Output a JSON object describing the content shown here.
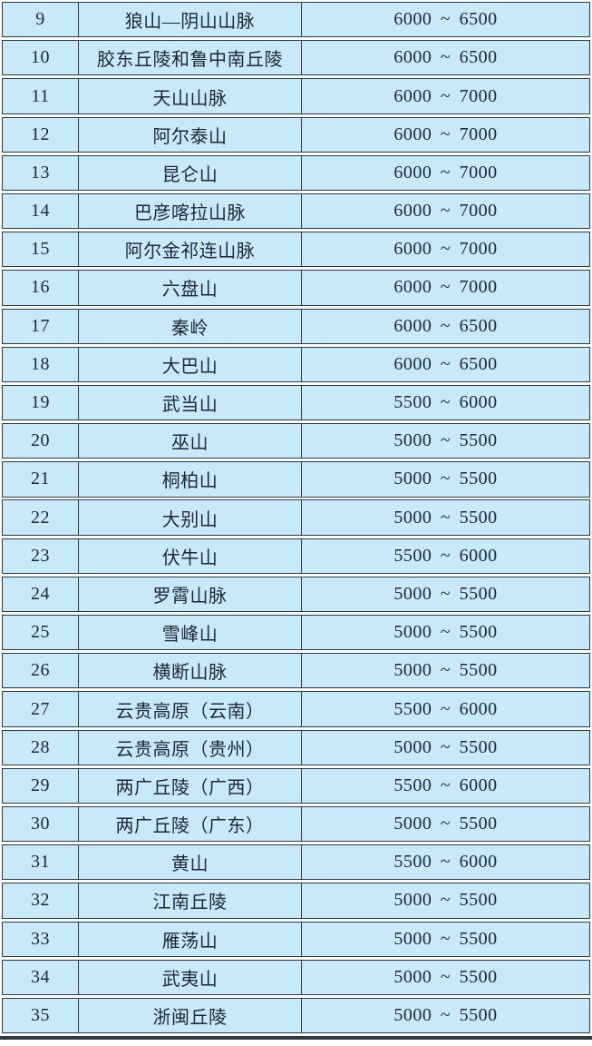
{
  "table": {
    "description_rows": [
      {
        "no": "9",
        "name": "狼山—阴山山脉",
        "range": "6000 ~ 6500"
      },
      {
        "no": "10",
        "name": "胶东丘陵和鲁中南丘陵",
        "range": "6000 ~ 6500"
      },
      {
        "no": "11",
        "name": "天山山脉",
        "range": "6000 ~ 7000"
      },
      {
        "no": "12",
        "name": "阿尔泰山",
        "range": "6000 ~ 7000"
      },
      {
        "no": "13",
        "name": "昆仑山",
        "range": "6000 ~ 7000"
      },
      {
        "no": "14",
        "name": "巴彦喀拉山脉",
        "range": "6000 ~ 7000"
      },
      {
        "no": "15",
        "name": "阿尔金祁连山脉",
        "range": "6000 ~ 7000"
      },
      {
        "no": "16",
        "name": "六盘山",
        "range": "6000 ~ 7000"
      },
      {
        "no": "17",
        "name": "秦岭",
        "range": "6000 ~ 6500"
      },
      {
        "no": "18",
        "name": "大巴山",
        "range": "6000 ~ 6500"
      },
      {
        "no": "19",
        "name": "武当山",
        "range": "5500 ~ 6000"
      },
      {
        "no": "20",
        "name": "巫山",
        "range": "5000 ~ 5500"
      },
      {
        "no": "21",
        "name": "桐柏山",
        "range": "5000 ~ 5500"
      },
      {
        "no": "22",
        "name": "大别山",
        "range": "5000 ~ 5500"
      },
      {
        "no": "23",
        "name": "伏牛山",
        "range": "5500 ~ 6000"
      },
      {
        "no": "24",
        "name": "罗霄山脉",
        "range": "5000 ~ 5500"
      },
      {
        "no": "25",
        "name": "雪峰山",
        "range": "5000 ~ 5500"
      },
      {
        "no": "26",
        "name": "横断山脉",
        "range": "5000 ~ 5500"
      },
      {
        "no": "27",
        "name": "云贵高原（云南）",
        "range": "5500 ~ 6000"
      },
      {
        "no": "28",
        "name": "云贵高原（贵州）",
        "range": "5000 ~ 5500"
      },
      {
        "no": "29",
        "name": "两广丘陵（广西）",
        "range": "5500 ~ 6000"
      },
      {
        "no": "30",
        "name": "两广丘陵（广东）",
        "range": "5000 ~ 5500"
      },
      {
        "no": "31",
        "name": "黄山",
        "range": "5500 ~ 6000"
      },
      {
        "no": "32",
        "name": "江南丘陵",
        "range": "5000 ~ 5500"
      },
      {
        "no": "33",
        "name": "雁荡山",
        "range": "5000 ~ 5500"
      },
      {
        "no": "34",
        "name": "武夷山",
        "range": "5000 ~ 5500"
      },
      {
        "no": "35",
        "name": "浙闽丘陵",
        "range": "5000 ~ 5500"
      }
    ]
  },
  "colors": {
    "cell_bg": "#c8e9fa",
    "border": "#2e3a41",
    "text": "#1d2834",
    "page_bg": "#ffffff"
  }
}
